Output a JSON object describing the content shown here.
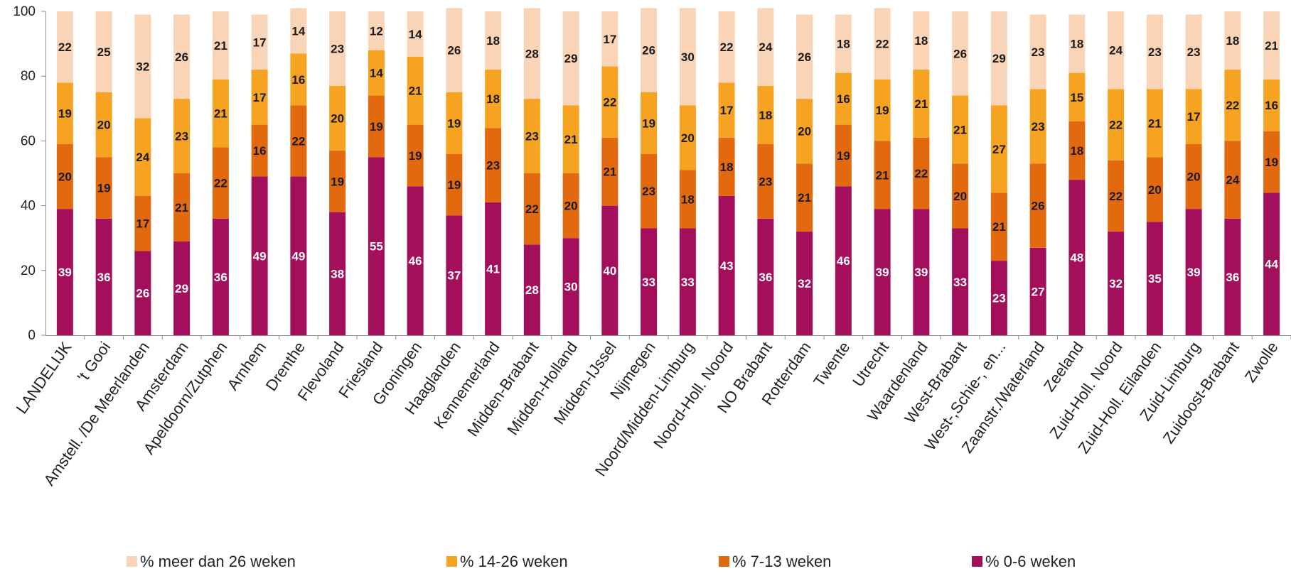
{
  "chart_data": {
    "type": "bar",
    "stacked": true,
    "categories": [
      "LANDELIJK",
      "'t Gooi",
      "Amstell. /De Meerlanden",
      "Amsterdam",
      "Apeldoorn/Zutphen",
      "Arnhem",
      "Drenthe",
      "Flevoland",
      "Friesland",
      "Groningen",
      "Haaglanden",
      "Kennemerland",
      "Midden-Brabant",
      "Midden-Holland",
      "Midden-IJssel",
      "Nijmegen",
      "Noord/Midden-Limburg",
      "Noord-Holl. Noord",
      "NO Brabant",
      "Rotterdam",
      "Twente",
      "Utrecht",
      "Waardenland",
      "West-Brabant",
      "West-,Schie-, en...",
      "Zaanstr./Waterland",
      "Zeeland",
      "Zuid-Holl. Noord",
      "Zuid-Holl. Eilanden",
      "Zuid-Limburg",
      "Zuidoost-Brabant",
      "Zwolle"
    ],
    "series": [
      {
        "name": "% 0-6 weken",
        "color": "#a30f5a",
        "label_color": "#ffffff",
        "values": [
          39,
          36,
          26,
          29,
          36,
          49,
          49,
          38,
          55,
          46,
          37,
          41,
          28,
          30,
          40,
          33,
          33,
          43,
          36,
          32,
          46,
          39,
          39,
          33,
          23,
          27,
          48,
          32,
          35,
          39,
          36,
          44
        ]
      },
      {
        "name": "% 7-13 weken",
        "color": "#e3690f",
        "label_color": "#1a1a1a",
        "values": [
          20,
          19,
          17,
          21,
          22,
          16,
          22,
          19,
          19,
          19,
          19,
          23,
          22,
          20,
          21,
          23,
          18,
          18,
          23,
          21,
          19,
          21,
          22,
          20,
          21,
          26,
          18,
          22,
          20,
          20,
          24,
          19
        ]
      },
      {
        "name": "% 14-26 weken",
        "color": "#f5a321",
        "label_color": "#1a1a1a",
        "values": [
          19,
          20,
          24,
          23,
          21,
          17,
          16,
          20,
          14,
          21,
          19,
          18,
          23,
          21,
          22,
          19,
          20,
          17,
          18,
          20,
          16,
          19,
          21,
          21,
          27,
          23,
          15,
          22,
          21,
          17,
          22,
          16
        ]
      },
      {
        "name": "% meer dan 26 weken",
        "color": "#fad4b6",
        "label_color": "#1a1a1a",
        "values": [
          22,
          25,
          32,
          26,
          21,
          17,
          14,
          23,
          12,
          14,
          26,
          18,
          28,
          29,
          17,
          26,
          30,
          22,
          24,
          26,
          18,
          22,
          18,
          26,
          29,
          23,
          18,
          24,
          23,
          23,
          18,
          21
        ]
      }
    ],
    "ylim": [
      0,
      100
    ],
    "yticks": [
      0,
      20,
      40,
      60,
      80,
      100
    ],
    "grid": false,
    "legend_position": "bottom",
    "legend_order": [
      3,
      2,
      1,
      0
    ],
    "title": "",
    "xlabel": "",
    "ylabel": ""
  }
}
